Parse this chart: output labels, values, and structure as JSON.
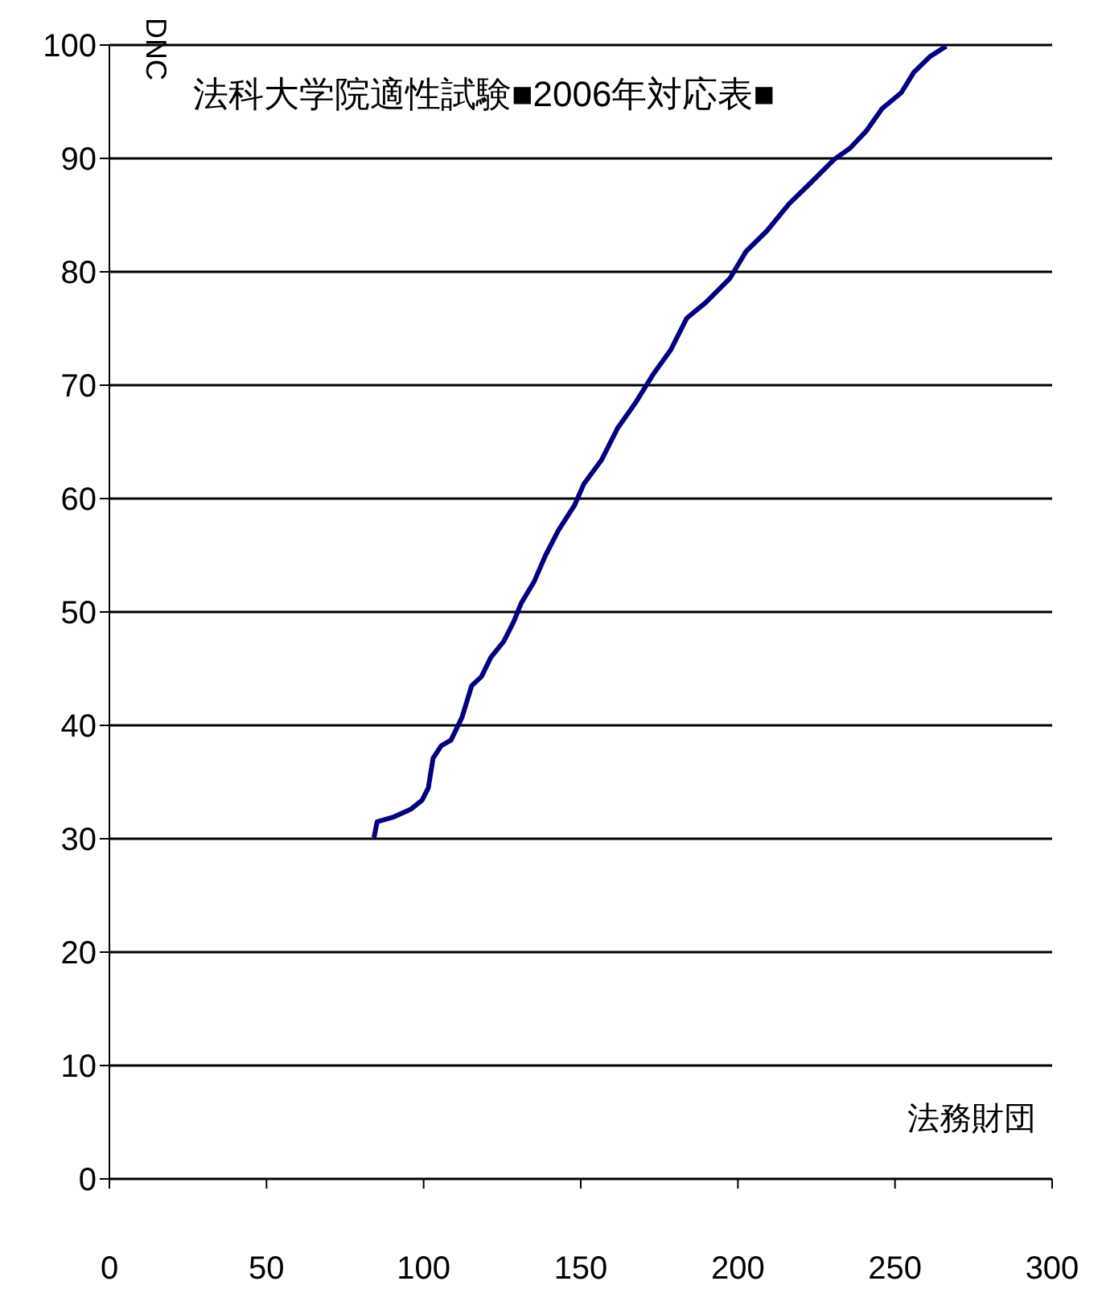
{
  "chart_data": {
    "type": "line",
    "title": "法科大学院適性試験■2006年対応表■",
    "xlabel": "法務財団",
    "ylabel": "DNC",
    "x": [
      84.2,
      85.2,
      90.3,
      95.9,
      99.5,
      101.5,
      103,
      105.6,
      108.7,
      112.2,
      115.3,
      118.4,
      121.4,
      125.5,
      128.6,
      131.1,
      135.2,
      138.8,
      142.9,
      148,
      151,
      156.6,
      161.7,
      167.3,
      172.9,
      178.6,
      183.7,
      189.8,
      197.4,
      202.6,
      209.2,
      216.3,
      223,
      230.6,
      235.7,
      240.8,
      245.9,
      252,
      256,
      261.2,
      266.3
    ],
    "series": [
      {
        "color": "#000080",
        "values": [
          30.1,
          31.5,
          31.9,
          32.6,
          33.4,
          34.5,
          37.1,
          38.2,
          38.7,
          40.7,
          43.5,
          44.3,
          46,
          47.4,
          49.1,
          50.8,
          52.7,
          55,
          57.2,
          59.4,
          61.3,
          63.4,
          66.2,
          68.4,
          70.9,
          73.1,
          75.9,
          77.3,
          79.4,
          81.8,
          83.6,
          86,
          87.8,
          89.9,
          90.9,
          92.4,
          94.4,
          95.8,
          97.6,
          99,
          99.9
        ]
      }
    ],
    "xlim": [
      0,
      300
    ],
    "xticks": [
      0,
      50,
      100,
      150,
      200,
      250,
      300
    ],
    "ylim": [
      0,
      100
    ],
    "yticks": [
      0,
      10,
      20,
      30,
      40,
      50,
      60,
      70,
      80,
      90,
      100
    ],
    "grid": "y",
    "marker": "none",
    "line_style": "solid"
  }
}
